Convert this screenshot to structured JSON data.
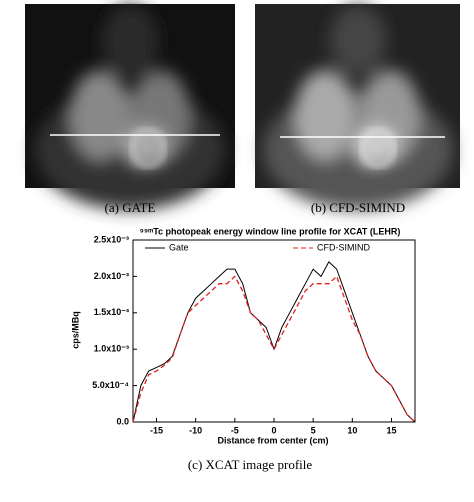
{
  "captions": {
    "a": "(a) GATE",
    "b": "(b) CFD-SIMIND",
    "c": "(c) XCAT image profile"
  },
  "chart_data": {
    "type": "line",
    "title": "⁹⁹ᵐTc photopeak energy window line profile for XCAT (LEHR)",
    "x_label": "Distance from center (cm)",
    "y_label": "cps/MBq",
    "x": [
      -18,
      -17,
      -16,
      -15,
      -14,
      -13,
      -12,
      -11,
      -10,
      -9,
      -8,
      -7,
      -6,
      -5,
      -4,
      -3,
      -2,
      -1,
      0,
      1,
      2,
      3,
      4,
      5,
      6,
      7,
      8,
      9,
      10,
      11,
      12,
      13,
      14,
      15,
      16,
      17,
      18
    ],
    "series": [
      {
        "name": "Gate",
        "color": "#000000",
        "dash": false,
        "values": [
          0,
          0.0005,
          0.0007,
          0.00075,
          0.0008,
          0.0009,
          0.0012,
          0.0015,
          0.0017,
          0.0018,
          0.0019,
          0.002,
          0.0021,
          0.0021,
          0.0019,
          0.0015,
          0.0014,
          0.0013,
          0.001,
          0.0013,
          0.0015,
          0.0017,
          0.0019,
          0.0021,
          0.002,
          0.0022,
          0.0021,
          0.0018,
          0.0015,
          0.0012,
          0.0009,
          0.0007,
          0.0006,
          0.0005,
          0.0003,
          0.0001,
          0
        ]
      },
      {
        "name": "CFD-SIMIND",
        "color": "#e02020",
        "dash": true,
        "values": [
          0,
          0.0004,
          0.00065,
          0.0007,
          0.00078,
          0.00088,
          0.0012,
          0.0015,
          0.0016,
          0.0017,
          0.0018,
          0.0019,
          0.0019,
          0.002,
          0.0018,
          0.0015,
          0.0014,
          0.0012,
          0.001,
          0.0012,
          0.0014,
          0.0016,
          0.0018,
          0.0019,
          0.0019,
          0.0019,
          0.002,
          0.0017,
          0.0014,
          0.0012,
          0.0009,
          0.0007,
          0.0006,
          0.0005,
          0.0003,
          0.0001,
          0
        ]
      }
    ],
    "xlim": [
      -18,
      18
    ],
    "xticks": [
      -15,
      -10,
      -5,
      0,
      5,
      10,
      15
    ],
    "ylim": [
      0,
      0.0025
    ],
    "yticks": [
      {
        "value": 0,
        "label": "0.0"
      },
      {
        "value": 0.0005,
        "label": "5.0x10⁻⁴"
      },
      {
        "value": 0.001,
        "label": "1.0x10⁻³"
      },
      {
        "value": 0.0015,
        "label": "1.5x10⁻³"
      },
      {
        "value": 0.002,
        "label": "2.0x10⁻³"
      },
      {
        "value": 0.0025,
        "label": "2.5x10⁻³"
      }
    ],
    "legend": "top"
  }
}
